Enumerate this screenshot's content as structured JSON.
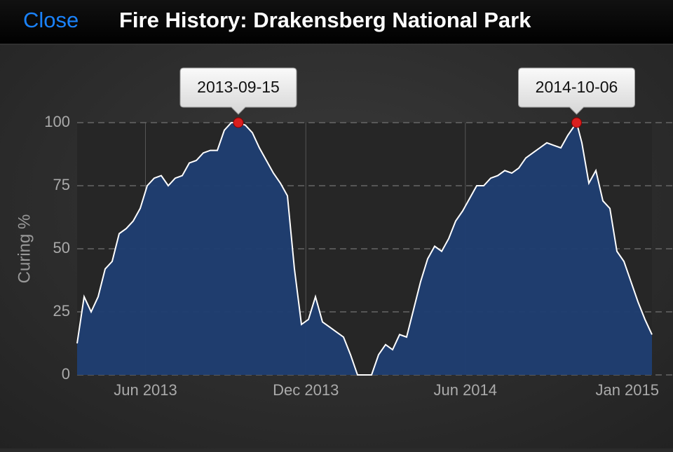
{
  "nav": {
    "close": "Close"
  },
  "chart_data": {
    "type": "area",
    "title": "Fire History: Drakensberg National Park",
    "y_label": "Curing %",
    "x": [
      "2013-03-15",
      "2013-03-23",
      "2013-03-31",
      "2013-04-08",
      "2013-04-16",
      "2013-04-24",
      "2013-05-02",
      "2013-05-10",
      "2013-05-18",
      "2013-05-26",
      "2013-06-03",
      "2013-06-11",
      "2013-06-19",
      "2013-06-27",
      "2013-07-05",
      "2013-07-13",
      "2013-07-21",
      "2013-07-29",
      "2013-08-06",
      "2013-08-14",
      "2013-08-22",
      "2013-08-30",
      "2013-09-07",
      "2013-09-15",
      "2013-09-23",
      "2013-10-01",
      "2013-10-09",
      "2013-10-17",
      "2013-10-25",
      "2013-11-02",
      "2013-11-10",
      "2013-11-18",
      "2013-11-26",
      "2013-12-04",
      "2013-12-12",
      "2013-12-20",
      "2013-12-28",
      "2014-01-05",
      "2014-01-13",
      "2014-01-21",
      "2014-01-29",
      "2014-02-06",
      "2014-02-14",
      "2014-02-22",
      "2014-03-02",
      "2014-03-10",
      "2014-03-18",
      "2014-03-26",
      "2014-04-03",
      "2014-04-11",
      "2014-04-19",
      "2014-04-27",
      "2014-05-05",
      "2014-05-13",
      "2014-05-21",
      "2014-05-29",
      "2014-06-06",
      "2014-06-14",
      "2014-06-22",
      "2014-06-30",
      "2014-07-08",
      "2014-07-16",
      "2014-07-24",
      "2014-08-01",
      "2014-08-09",
      "2014-08-17",
      "2014-08-25",
      "2014-09-02",
      "2014-09-10",
      "2014-09-18",
      "2014-09-26",
      "2014-10-06",
      "2014-10-12",
      "2014-10-20",
      "2014-10-28",
      "2014-11-05",
      "2014-11-13",
      "2014-11-21",
      "2014-11-29",
      "2014-12-07",
      "2014-12-15",
      "2014-12-23",
      "2014-12-31"
    ],
    "values": [
      12.5,
      31,
      25,
      31,
      42,
      45,
      56,
      58,
      61,
      66,
      75,
      78,
      79,
      75,
      78,
      79,
      84,
      85,
      88,
      89,
      89,
      97,
      100,
      100,
      99,
      96,
      90,
      85,
      80,
      76,
      71,
      42,
      20,
      22,
      31,
      21,
      19,
      17,
      15,
      8,
      0,
      0,
      0,
      8,
      12,
      10,
      16,
      15,
      26,
      37,
      46,
      51,
      49,
      54,
      61,
      65,
      70,
      75,
      75,
      78,
      79,
      81,
      80,
      82,
      86,
      88,
      90,
      92,
      91,
      90,
      95,
      100,
      92,
      76,
      81,
      69,
      66,
      49,
      45,
      37,
      29,
      22,
      16
    ],
    "color": "#1f3e72",
    "line_color": "#ffffff",
    "xlim": [
      "2013-03-15",
      "2014-12-31"
    ],
    "xticks": [
      {
        "value": "2013-06-01",
        "label": "Jun 2013"
      },
      {
        "value": "2013-12-01",
        "label": "Dec 2013"
      },
      {
        "value": "2014-06-01",
        "label": "Jun 2014"
      },
      {
        "value": "2015-01-01",
        "label": "Jan 2015"
      }
    ],
    "ylim": [
      0,
      100
    ],
    "yticks": [
      0,
      25,
      50,
      75,
      100
    ],
    "grid": true,
    "annotations": [
      "2013-09-15",
      "2014-10-06"
    ]
  }
}
